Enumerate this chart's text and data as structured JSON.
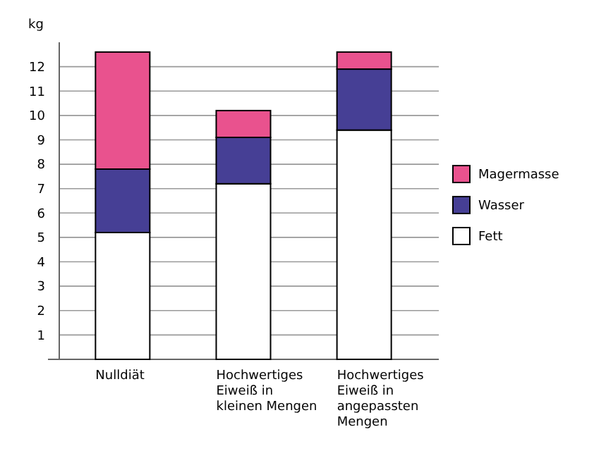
{
  "chart_data": {
    "type": "bar",
    "stacked": true,
    "ylabel": "kg",
    "categories": [
      "Nulldiät",
      "Hochwertiges Eiweiß in kleinen Mengen",
      "Hochwertiges Eiweiß in angepassten Mengen"
    ],
    "series": [
      {
        "name": "Fett",
        "color": "#ffffff",
        "values": [
          5.2,
          7.2,
          9.4
        ]
      },
      {
        "name": "Wasser",
        "color": "#463f95",
        "values": [
          2.6,
          1.9,
          2.5
        ]
      },
      {
        "name": "Magermasse",
        "color": "#e9528e",
        "values": [
          4.8,
          1.1,
          0.7
        ]
      }
    ],
    "ylim": [
      0,
      13
    ],
    "yticks": [
      1,
      2,
      3,
      4,
      5,
      6,
      7,
      8,
      9,
      10,
      11,
      12
    ],
    "grid": "y",
    "legend": "right"
  }
}
